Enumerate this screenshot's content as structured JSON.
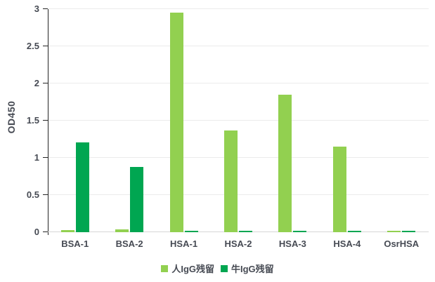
{
  "chart_data": {
    "type": "bar",
    "title": "",
    "xlabel": "",
    "ylabel": "OD450",
    "categories": [
      "BSA-1",
      "BSA-2",
      "HSA-1",
      "HSA-2",
      "HSA-3",
      "HSA-4",
      "OsrHSA"
    ],
    "series": [
      {
        "name": "人IgG残留",
        "color": "#92d050",
        "values": [
          0.03,
          0.04,
          2.95,
          1.37,
          1.85,
          1.15,
          0.02
        ]
      },
      {
        "name": "牛IgG残留",
        "color": "#00a651",
        "values": [
          1.21,
          0.88,
          0.02,
          0.02,
          0.02,
          0.02,
          0.02
        ]
      }
    ],
    "ylim": [
      0,
      3
    ],
    "ytick_values": [
      0,
      0.5,
      1,
      1.5,
      2,
      2.5,
      3
    ],
    "ytick_labels": [
      "0",
      "0.5",
      "1",
      "1.5",
      "2",
      "2.5",
      "3"
    ],
    "grid": true,
    "legend_position": "bottom"
  },
  "colors": {
    "series_light_green": "#92d050",
    "series_dark_green": "#00a651",
    "gridline": "#ebebeb",
    "x_axis_line": "#d6d6d6",
    "y_axis_line": "#262626",
    "label_text": "#464a53",
    "background": "#ffffff"
  }
}
